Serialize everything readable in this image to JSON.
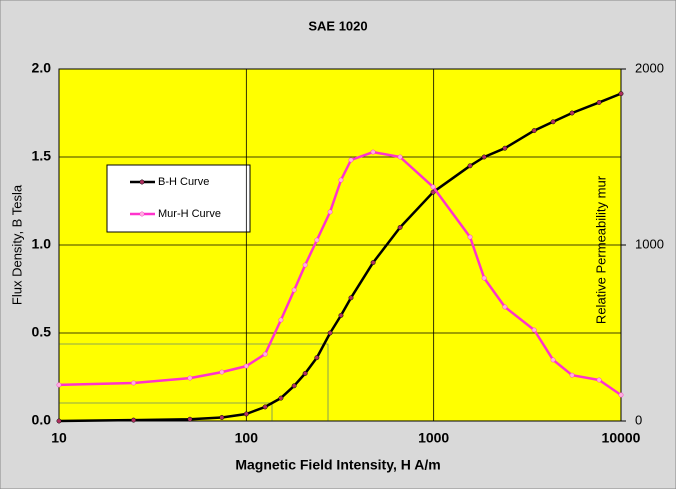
{
  "chart_data": {
    "type": "line",
    "title": "SAE 1020",
    "xlabel": "Magnetic Field Intensity, H A/m",
    "ylabel": "Flux Density, B Tesla",
    "y2label": "Relative Permeability mur",
    "xscale": "log",
    "xlim": [
      10,
      10000
    ],
    "xticks": [
      10,
      100,
      1000,
      10000
    ],
    "ylim": [
      0,
      2
    ],
    "yticks": [
      {
        "value": 0,
        "label": "0.0"
      },
      {
        "value": 0.5,
        "label": "0.5"
      },
      {
        "value": 1,
        "label": "1.0"
      },
      {
        "value": 1.5,
        "label": "1.5"
      },
      {
        "value": 2,
        "label": "2.0"
      }
    ],
    "y2lim": [
      0,
      2000
    ],
    "y2ticks": [
      0,
      1000,
      2000
    ],
    "grid": true,
    "x": [
      10,
      25,
      50,
      74,
      100,
      126,
      153,
      180,
      206,
      238,
      280,
      320,
      362,
      475,
      662,
      993,
      1564,
      1860,
      2400,
      3440,
      4340,
      5480,
      7640,
      10000
    ],
    "series": [
      {
        "name": "B-H Curve",
        "color": "#000000",
        "marker_color": "#b03060",
        "values": [
          0,
          0.005,
          0.01,
          0.02,
          0.04,
          0.08,
          0.13,
          0.2,
          0.27,
          0.36,
          0.5,
          0.6,
          0.7,
          0.9,
          1.1,
          1.3,
          1.45,
          1.5,
          1.55,
          1.65,
          1.7,
          1.75,
          1.81,
          1.86
        ]
      },
      {
        "name": "Mur-H Curve",
        "color": "#ff33cc",
        "marker_color": "#ffb0e0",
        "axis": "y2",
        "values": [
          205,
          216,
          244,
          278,
          312,
          380,
          574,
          744,
          886,
          1028,
          1188,
          1369,
          1483,
          1528,
          1500,
          1330,
          1045,
          812,
          648,
          517,
          347,
          260,
          233,
          148
        ]
      }
    ]
  }
}
